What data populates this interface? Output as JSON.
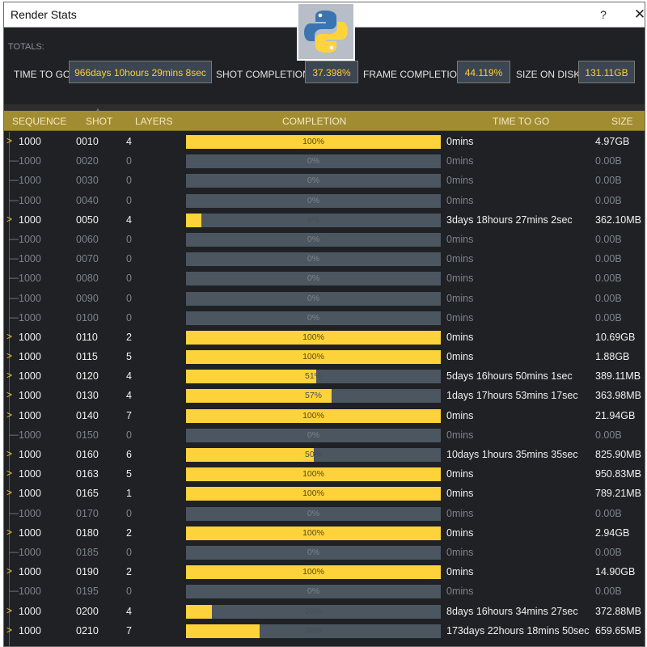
{
  "window": {
    "title": "Render Stats",
    "help_label": "?",
    "close_label": "✕"
  },
  "totals": {
    "heading": "TOTALS:",
    "time_to_go_label": "TIME TO GO:",
    "time_to_go_value": "966days 10hours 29mins 8sec",
    "shot_completion_label": "SHOT COMPLETION:",
    "shot_completion_value": "37.398%",
    "frame_completion_label": "FRAME COMPLETION:",
    "frame_completion_value": "44.119%",
    "size_on_disk_label": "SIZE ON DISK:",
    "size_on_disk_value": "131.11GB"
  },
  "table": {
    "columns": {
      "sequence": "SEQUENCE",
      "shot": "SHOT",
      "layers": "LAYERS",
      "completion": "COMPLETION",
      "time_to_go": "TIME TO GO",
      "size": "SIZE"
    },
    "rows": [
      {
        "sequence": "1000",
        "shot": "0010",
        "layers": "4",
        "completion": 100,
        "completion_label": "100%",
        "time_to_go": "0mins",
        "size": "4.97GB",
        "expandable": true
      },
      {
        "sequence": "1000",
        "shot": "0020",
        "layers": "0",
        "completion": 0,
        "completion_label": "0%",
        "time_to_go": "0mins",
        "size": "0.00B",
        "expandable": false
      },
      {
        "sequence": "1000",
        "shot": "0030",
        "layers": "0",
        "completion": 0,
        "completion_label": "0%",
        "time_to_go": "0mins",
        "size": "0.00B",
        "expandable": false
      },
      {
        "sequence": "1000",
        "shot": "0040",
        "layers": "0",
        "completion": 0,
        "completion_label": "0%",
        "time_to_go": "0mins",
        "size": "0.00B",
        "expandable": false
      },
      {
        "sequence": "1000",
        "shot": "0050",
        "layers": "4",
        "completion": 6,
        "completion_label": "6%",
        "time_to_go": "3days 18hours 27mins 2sec",
        "size": "362.10MB",
        "expandable": true
      },
      {
        "sequence": "1000",
        "shot": "0060",
        "layers": "0",
        "completion": 0,
        "completion_label": "0%",
        "time_to_go": "0mins",
        "size": "0.00B",
        "expandable": false
      },
      {
        "sequence": "1000",
        "shot": "0070",
        "layers": "0",
        "completion": 0,
        "completion_label": "0%",
        "time_to_go": "0mins",
        "size": "0.00B",
        "expandable": false
      },
      {
        "sequence": "1000",
        "shot": "0080",
        "layers": "0",
        "completion": 0,
        "completion_label": "0%",
        "time_to_go": "0mins",
        "size": "0.00B",
        "expandable": false
      },
      {
        "sequence": "1000",
        "shot": "0090",
        "layers": "0",
        "completion": 0,
        "completion_label": "0%",
        "time_to_go": "0mins",
        "size": "0.00B",
        "expandable": false
      },
      {
        "sequence": "1000",
        "shot": "0100",
        "layers": "0",
        "completion": 0,
        "completion_label": "0%",
        "time_to_go": "0mins",
        "size": "0.00B",
        "expandable": false
      },
      {
        "sequence": "1000",
        "shot": "0110",
        "layers": "2",
        "completion": 100,
        "completion_label": "100%",
        "time_to_go": "0mins",
        "size": "10.69GB",
        "expandable": true
      },
      {
        "sequence": "1000",
        "shot": "0115",
        "layers": "5",
        "completion": 100,
        "completion_label": "100%",
        "time_to_go": "0mins",
        "size": "1.88GB",
        "expandable": true
      },
      {
        "sequence": "1000",
        "shot": "0120",
        "layers": "4",
        "completion": 51,
        "completion_label": "51%",
        "time_to_go": "5days 16hours 50mins 1sec",
        "size": "389.11MB",
        "expandable": true
      },
      {
        "sequence": "1000",
        "shot": "0130",
        "layers": "4",
        "completion": 57,
        "completion_label": "57%",
        "time_to_go": "1days 17hours 53mins 17sec",
        "size": "363.98MB",
        "expandable": true
      },
      {
        "sequence": "1000",
        "shot": "0140",
        "layers": "7",
        "completion": 100,
        "completion_label": "100%",
        "time_to_go": "0mins",
        "size": "21.94GB",
        "expandable": true
      },
      {
        "sequence": "1000",
        "shot": "0150",
        "layers": "0",
        "completion": 0,
        "completion_label": "0%",
        "time_to_go": "0mins",
        "size": "0.00B",
        "expandable": false
      },
      {
        "sequence": "1000",
        "shot": "0160",
        "layers": "6",
        "completion": 50,
        "completion_label": "50%",
        "time_to_go": "10days 1hours 35mins 35sec",
        "size": "825.90MB",
        "expandable": true
      },
      {
        "sequence": "1000",
        "shot": "0163",
        "layers": "5",
        "completion": 100,
        "completion_label": "100%",
        "time_to_go": "0mins",
        "size": "950.83MB",
        "expandable": true
      },
      {
        "sequence": "1000",
        "shot": "0165",
        "layers": "1",
        "completion": 100,
        "completion_label": "100%",
        "time_to_go": "0mins",
        "size": "789.21MB",
        "expandable": true
      },
      {
        "sequence": "1000",
        "shot": "0170",
        "layers": "0",
        "completion": 0,
        "completion_label": "0%",
        "time_to_go": "0mins",
        "size": "0.00B",
        "expandable": false
      },
      {
        "sequence": "1000",
        "shot": "0180",
        "layers": "2",
        "completion": 100,
        "completion_label": "100%",
        "time_to_go": "0mins",
        "size": "2.94GB",
        "expandable": true
      },
      {
        "sequence": "1000",
        "shot": "0185",
        "layers": "0",
        "completion": 0,
        "completion_label": "0%",
        "time_to_go": "0mins",
        "size": "0.00B",
        "expandable": false
      },
      {
        "sequence": "1000",
        "shot": "0190",
        "layers": "2",
        "completion": 100,
        "completion_label": "100%",
        "time_to_go": "0mins",
        "size": "14.90GB",
        "expandable": true
      },
      {
        "sequence": "1000",
        "shot": "0195",
        "layers": "0",
        "completion": 0,
        "completion_label": "0%",
        "time_to_go": "0mins",
        "size": "0.00B",
        "expandable": false
      },
      {
        "sequence": "1000",
        "shot": "0200",
        "layers": "4",
        "completion": 10,
        "completion_label": "10%",
        "time_to_go": "8days 16hours 34mins 27sec",
        "size": "372.88MB",
        "expandable": true
      },
      {
        "sequence": "1000",
        "shot": "0210",
        "layers": "7",
        "completion": 29,
        "completion_label": "29%",
        "time_to_go": "173days 22hours 18mins 50sec",
        "size": "659.65MB",
        "expandable": true
      }
    ]
  },
  "icons": {
    "app_logo": "python-logo-icon",
    "expand": "expand-arrow-icon",
    "sort": "sort-ascending-icon"
  },
  "colors": {
    "accent": "#fdd23b",
    "header": "#a28c32",
    "background": "#1f2124",
    "bar_empty": "#4b5661"
  }
}
